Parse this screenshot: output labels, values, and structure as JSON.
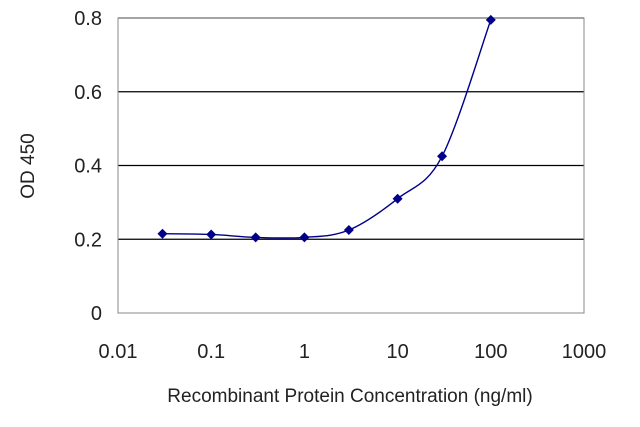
{
  "chart_data": {
    "type": "line",
    "xlabel": "Recombinant Protein Concentration (ng/ml)",
    "ylabel": "OD 450",
    "x_scale": "log",
    "xlim": [
      0.01,
      1000
    ],
    "ylim": [
      0,
      0.8
    ],
    "x_ticks": [
      "0.01",
      "0.1",
      "1",
      "10",
      "100",
      "1000"
    ],
    "y_ticks": [
      "0",
      "0.2",
      "0.4",
      "0.6",
      "0.8"
    ],
    "grid": "horizontal",
    "series": [
      {
        "x": [
          0.03,
          0.1,
          0.3,
          1,
          3,
          10,
          30,
          100
        ],
        "y": [
          0.215,
          0.213,
          0.205,
          0.205,
          0.225,
          0.31,
          0.425,
          0.795
        ]
      }
    ],
    "colors": {
      "series": "#00008b",
      "grid": "#000000",
      "plot_border": "#888888"
    }
  }
}
